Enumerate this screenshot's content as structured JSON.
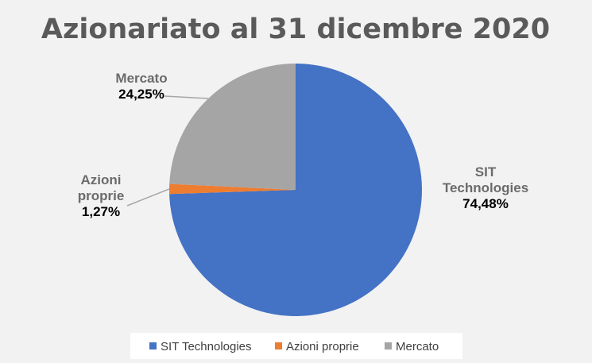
{
  "chart_data": {
    "type": "pie",
    "title": "Azionariato al 31 dicembre 2020",
    "categories": [
      "SIT Technologies",
      "Azioni proprie",
      "Mercato"
    ],
    "values": [
      74.48,
      1.27,
      24.25
    ],
    "value_labels": [
      "74,48%",
      "1,27%",
      "24,25%"
    ],
    "label_lines": [
      [
        "SIT",
        "Technologies"
      ],
      [
        "Azioni",
        "proprie"
      ],
      [
        "Mercato"
      ]
    ],
    "colors": [
      "#4472c4",
      "#ed7d31",
      "#a5a5a5"
    ],
    "legend_position": "bottom",
    "start_angle_deg": 0,
    "direction": "clockwise"
  }
}
